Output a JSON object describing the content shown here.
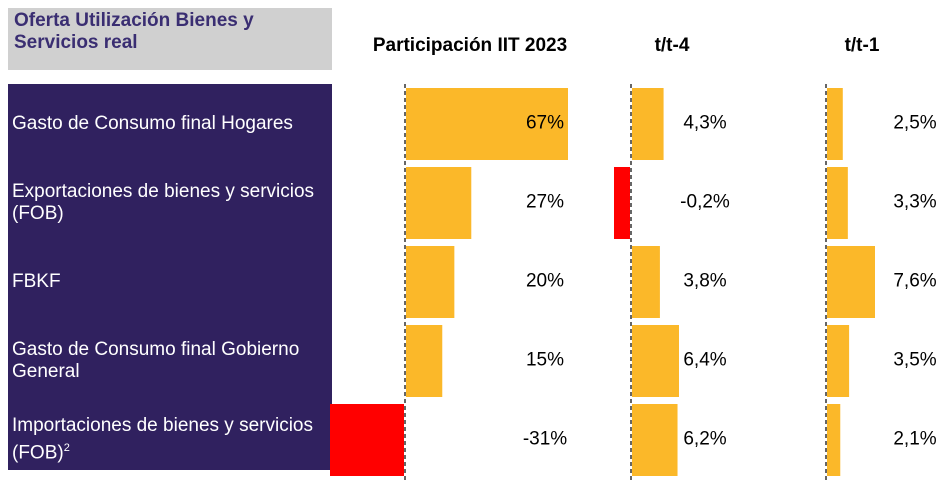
{
  "chart_data": {
    "type": "hbar-panels",
    "header": "Oferta Utilización Bienes y Servicios real",
    "categories": [
      "Gasto de Consumo final Hogares",
      "Exportaciones de bienes y servicios (FOB)",
      "FBKF",
      "Gasto de Consumo final Gobierno General",
      "Importaciones de bienes y servicios (FOB)"
    ],
    "category_notes": [
      null,
      null,
      null,
      null,
      "2"
    ],
    "negative_color": "#ff0000",
    "series": [
      {
        "name": "Participación IIT 2023",
        "color": "#fbb829",
        "values": [
          67,
          27,
          20,
          15,
          -31
        ],
        "value_labels": [
          "67%",
          "27%",
          "20%",
          "15%",
          "-31%"
        ]
      },
      {
        "name": "t/t-4",
        "color": "#fbb829",
        "values": [
          4.3,
          -0.2,
          3.8,
          6.4,
          6.2
        ],
        "value_labels": [
          "4,3%",
          "-0,2%",
          "3,8%",
          "6,4%",
          "6,2%"
        ]
      },
      {
        "name": "t/t-1",
        "color": "#fbb829",
        "values": [
          2.5,
          3.3,
          7.6,
          3.5,
          2.1
        ],
        "value_labels": [
          "2,5%",
          "3,3%",
          "7,6%",
          "3,5%",
          "2,1%"
        ]
      }
    ]
  }
}
